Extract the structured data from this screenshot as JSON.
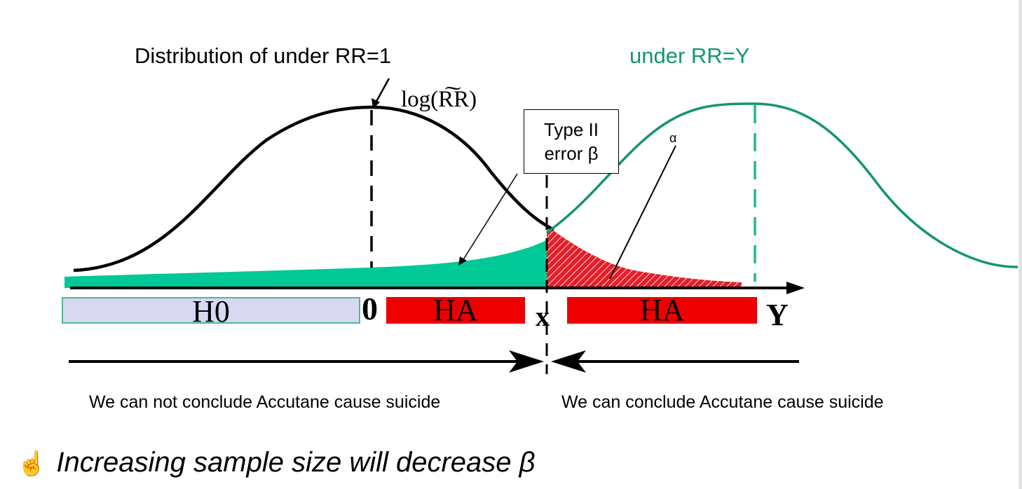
{
  "labels": {
    "dist_h0": "Distribution of  under RR=1",
    "dist_ha": "under RR=Y",
    "log_rr": "log(R͠R)",
    "type2_line1": "Type II",
    "type2_line2": "error β",
    "alpha": "α",
    "zero": "0",
    "x": "x",
    "y": "Y"
  },
  "regions": {
    "h0": "H0",
    "ha_left": "HA",
    "ha_right": "HA"
  },
  "conclusions": {
    "left": "We can not conclude Accutane cause suicide",
    "right": "We can conclude Accutane cause suicide"
  },
  "note": {
    "icon": "pointing-hand-icon",
    "text": "Increasing sample size will decrease β"
  },
  "colors": {
    "h0_curve": "#000000",
    "ha_curve": "#14966e",
    "beta_fill": "#00c896",
    "alpha_fill": "#e0202a",
    "region_ha": "#ee0000",
    "region_h0": "#d8d8f0"
  }
}
